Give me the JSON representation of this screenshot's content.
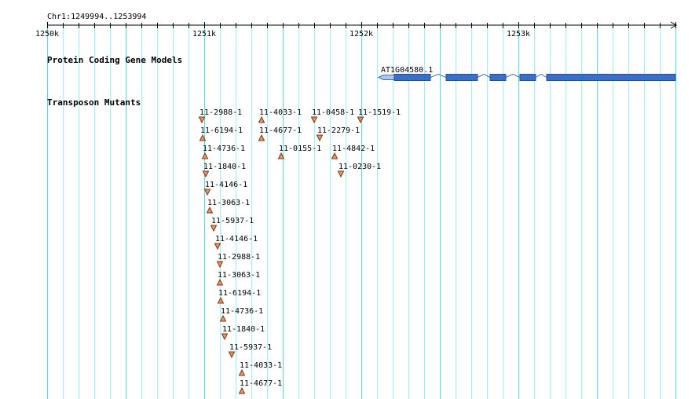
{
  "ruler": {
    "region_label": "Chr1:1249994..1253994",
    "ticks": [
      {
        "pos": 1250000,
        "label": "1250k"
      },
      {
        "pos": 1251000,
        "label": "1251k"
      },
      {
        "pos": 1252000,
        "label": "1252k"
      },
      {
        "pos": 1253000,
        "label": "1253k"
      }
    ],
    "view_start": 1250000,
    "view_end": 1254000,
    "minor_step": 100
  },
  "tracks": {
    "gene_models": {
      "title": "Protein Coding Gene Models",
      "gene": {
        "name": "AT1G04580.1",
        "strand": "-",
        "utr_5prime": [
          1252110,
          1252210
        ],
        "exons": [
          [
            1252210,
            1252440
          ],
          [
            1252540,
            1252740
          ],
          [
            1252820,
            1252920
          ],
          [
            1253010,
            1253110
          ],
          [
            1253180,
            1254000
          ]
        ],
        "color": "#3a6fc7"
      }
    },
    "transposon_mutants": {
      "title": "Transposon Mutants",
      "insert_color": "#e8956a",
      "items": [
        {
          "label": "11-2988-1",
          "pos": 1250985,
          "row": 0,
          "dir": "down"
        },
        {
          "label": "11-4033-1",
          "pos": 1251365,
          "row": 0,
          "dir": "up"
        },
        {
          "label": "11-0458-1",
          "pos": 1251700,
          "row": 0,
          "dir": "down"
        },
        {
          "label": "11-1519-1",
          "pos": 1251995,
          "row": 0,
          "dir": "down"
        },
        {
          "label": "11-6194-1",
          "pos": 1250990,
          "row": 1,
          "dir": "up"
        },
        {
          "label": "11-4677-1",
          "pos": 1251365,
          "row": 1,
          "dir": "up"
        },
        {
          "label": "11-2279-1",
          "pos": 1251735,
          "row": 1,
          "dir": "down"
        },
        {
          "label": "11-4736-1",
          "pos": 1251005,
          "row": 2,
          "dir": "up"
        },
        {
          "label": "11-0155-1",
          "pos": 1251490,
          "row": 2,
          "dir": "up"
        },
        {
          "label": "11-4842-1",
          "pos": 1251830,
          "row": 2,
          "dir": "up"
        },
        {
          "label": "11-1840-1",
          "pos": 1251010,
          "row": 3,
          "dir": "down"
        },
        {
          "label": "11-0230-1",
          "pos": 1251870,
          "row": 3,
          "dir": "down"
        },
        {
          "label": "11-4146-1",
          "pos": 1251020,
          "row": 4,
          "dir": "down"
        },
        {
          "label": "11-3063-1",
          "pos": 1251035,
          "row": 5,
          "dir": "up"
        },
        {
          "label": "11-5937-1",
          "pos": 1251060,
          "row": 6,
          "dir": "down"
        },
        {
          "label": "11-4146-1",
          "pos": 1251085,
          "row": 7,
          "dir": "down"
        },
        {
          "label": "11-2988-1",
          "pos": 1251100,
          "row": 8,
          "dir": "down"
        },
        {
          "label": "11-3063-1",
          "pos": 1251100,
          "row": 9,
          "dir": "up"
        },
        {
          "label": "11-6194-1",
          "pos": 1251105,
          "row": 10,
          "dir": "up"
        },
        {
          "label": "11-4736-1",
          "pos": 1251120,
          "row": 11,
          "dir": "up"
        },
        {
          "label": "11-1840-1",
          "pos": 1251130,
          "row": 12,
          "dir": "down"
        },
        {
          "label": "11-5937-1",
          "pos": 1251175,
          "row": 13,
          "dir": "down"
        },
        {
          "label": "11-4033-1",
          "pos": 1251240,
          "row": 14,
          "dir": "up"
        },
        {
          "label": "11-4677-1",
          "pos": 1251240,
          "row": 15,
          "dir": "up"
        }
      ]
    }
  },
  "colors": {
    "grid_minor": "#b8e6ee",
    "grid_major": "#7fc9d9",
    "axis": "#000000",
    "insert_stroke": "#7a3a12"
  }
}
